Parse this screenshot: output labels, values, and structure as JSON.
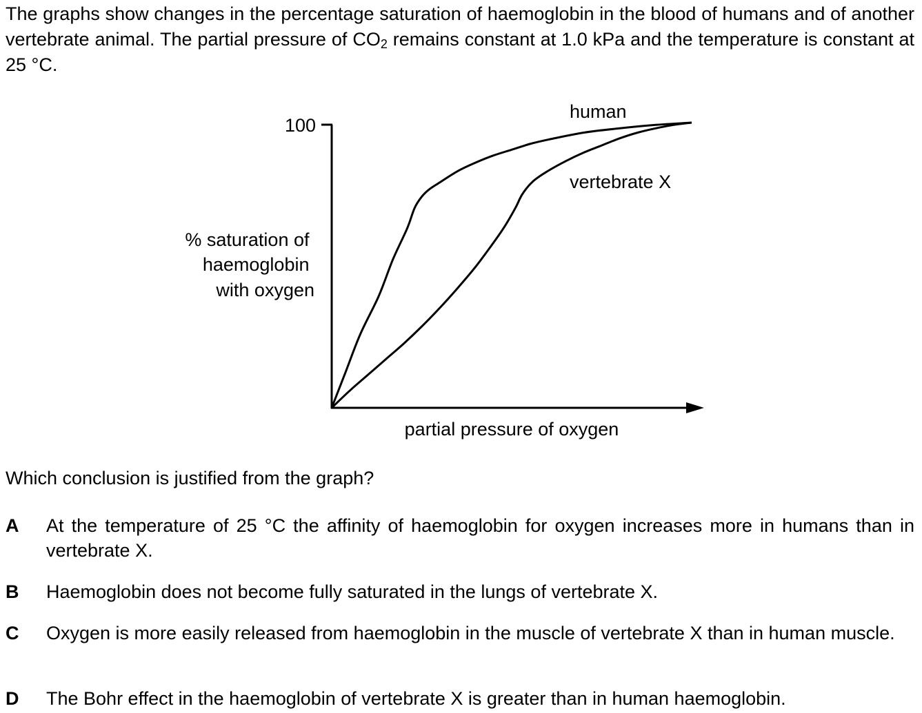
{
  "intro": {
    "part1": "The graphs show changes in the percentage saturation of haemoglobin in the blood of humans and of another vertebrate animal. The partial pressure of CO",
    "subscript": "2",
    "part2": " remains constant at 1.0 kPa and the temperature is constant at 25 °C."
  },
  "chart_data": {
    "type": "line",
    "title": "",
    "xlabel": "partial pressure of oxygen",
    "ylabel_lines": [
      "% saturation of",
      "haemoglobin",
      "with oxygen"
    ],
    "y_ticks": [
      100
    ],
    "y_tick_labels": [
      "100"
    ],
    "ylim": [
      0,
      100
    ],
    "x_axis_arrow": true,
    "grid": false,
    "legend": "none (curves labelled directly)",
    "series": [
      {
        "name": "human",
        "x": [
          0,
          4,
          8,
          13,
          17,
          21,
          23,
          25,
          27,
          30,
          35,
          40,
          45,
          50,
          55,
          60,
          70,
          80,
          90,
          100
        ],
        "y": [
          0,
          13,
          26,
          39,
          52,
          63,
          70,
          74,
          76.5,
          79,
          83,
          86,
          88.5,
          90.5,
          92.5,
          94,
          96.5,
          98,
          99.2,
          100
        ]
      },
      {
        "name": "vertebrate X",
        "x": [
          0,
          5,
          10,
          15,
          20,
          25,
          30,
          35,
          40,
          45,
          48,
          51,
          53,
          56,
          60,
          65,
          70,
          75,
          80,
          85,
          90,
          95,
          100
        ],
        "y": [
          0,
          6,
          11.5,
          17,
          22.5,
          28.5,
          35,
          42,
          49.5,
          58,
          63.5,
          70,
          75,
          79.5,
          83,
          86.5,
          89.5,
          92,
          94.5,
          96.5,
          98,
          99.2,
          100
        ]
      }
    ]
  },
  "question": "Which conclusion is justified from the graph?",
  "options": [
    {
      "letter": "A",
      "text": "At the temperature of 25 °C the affinity of haemoglobin for oxygen increases more in humans than in vertebrate X."
    },
    {
      "letter": "B",
      "text": "Haemoglobin does not become fully saturated in the lungs of vertebrate X."
    },
    {
      "letter": "C",
      "text": "Oxygen is more easily released from haemoglobin in the muscle of vertebrate X than in human muscle."
    },
    {
      "letter": "D",
      "text": "The Bohr effect in the haemoglobin of vertebrate X is greater than in human haemoglobin."
    }
  ]
}
